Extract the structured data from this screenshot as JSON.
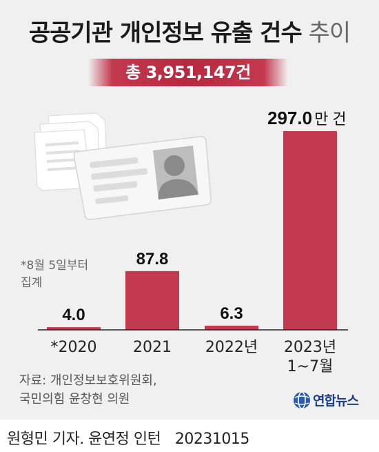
{
  "header": {
    "title_main": "공공기관 개인정보 유출 건수",
    "title_sub": "추이",
    "total": "총 3,951,147건"
  },
  "note": "*8월 5일부터\n집계",
  "source": "자료: 개인정보보호위원회,\n국민의힘 윤창현 의원",
  "logo_text": "연합뉴스",
  "credit": {
    "author": "원형민 기자. 윤연정 인턴",
    "date": "20231015"
  },
  "chart_data": {
    "type": "bar",
    "categories": [
      "*2020",
      "2021",
      "2022년",
      "2023년\n1~7월"
    ],
    "values": [
      4.0,
      87.8,
      6.3,
      297.0
    ],
    "value_labels": [
      "4.0",
      "87.8",
      "6.3",
      "297.0"
    ],
    "unit_label": "만 건",
    "unit_on_category_index": 3,
    "colors": {
      "bar": "#c3394f",
      "baseline": "#222222"
    }
  }
}
